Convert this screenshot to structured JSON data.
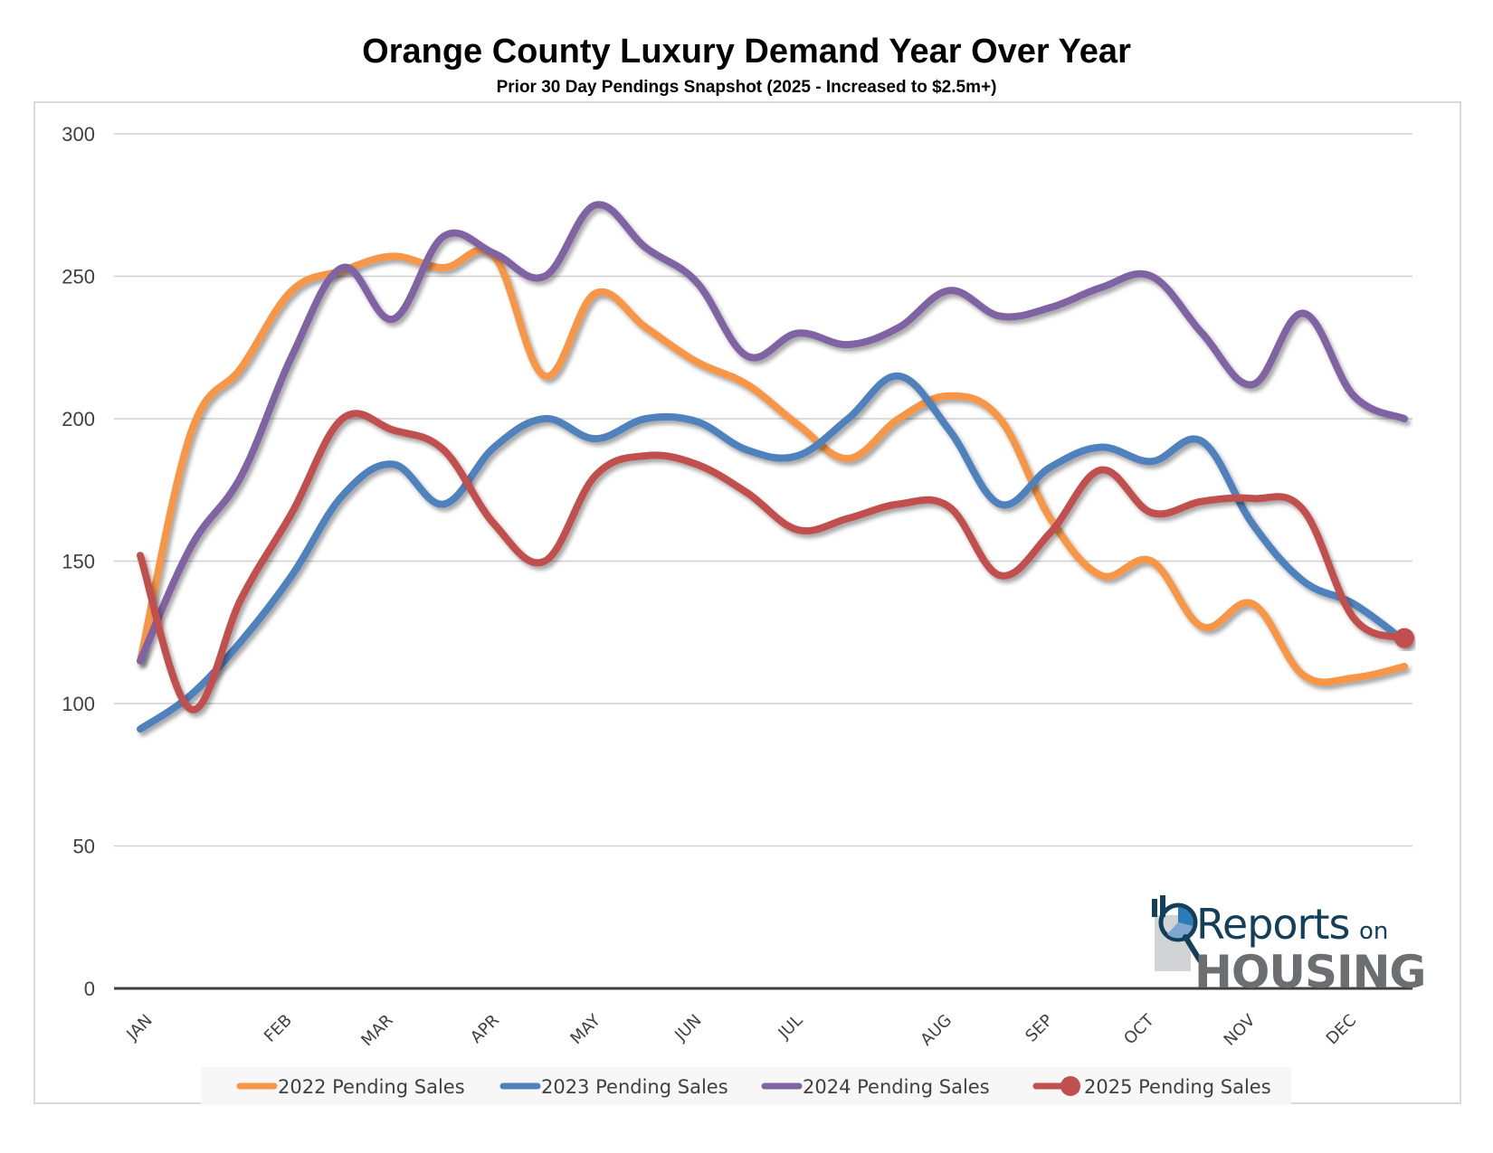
{
  "chart_data": {
    "type": "line",
    "title": "Orange County Luxury Demand Year Over Year",
    "subtitle": "Prior 30 Day Pendings Snapshot (2025 - Increased to $2.5m+)",
    "xlabel": "",
    "ylabel": "",
    "ylim": [
      0,
      300
    ],
    "yticks": [
      0,
      50,
      100,
      150,
      200,
      250,
      300
    ],
    "grid": true,
    "smooth": true,
    "legend_position": "bottom",
    "x_sample_range": [
      0,
      25
    ],
    "month_labels": [
      {
        "label": "JAN",
        "at": 0
      },
      {
        "label": "FEB",
        "at": 2.76
      },
      {
        "label": "MAR",
        "at": 4.76
      },
      {
        "label": "APR",
        "at": 6.86
      },
      {
        "label": "MAY",
        "at": 8.86
      },
      {
        "label": "JUN",
        "at": 10.86
      },
      {
        "label": "JUL",
        "at": 12.86
      },
      {
        "label": "AUG",
        "at": 15.81
      },
      {
        "label": "SEP",
        "at": 17.81
      },
      {
        "label": "OCT",
        "at": 19.81
      },
      {
        "label": "NOV",
        "at": 21.81
      },
      {
        "label": "DEC",
        "at": 23.81
      }
    ],
    "series": [
      {
        "name": "2022 Pending Sales",
        "color": "#f79646",
        "marker_last": false,
        "values": [
          115,
          195,
          218,
          245,
          252,
          257,
          253,
          257,
          215,
          244,
          232,
          220,
          212,
          198,
          186,
          200,
          208,
          200,
          165,
          145,
          150,
          127,
          135,
          110,
          109,
          113
        ]
      },
      {
        "name": "2023 Pending Sales",
        "color": "#4f81bd",
        "marker_last": false,
        "values": [
          91,
          103,
          122,
          145,
          173,
          184,
          170,
          190,
          200,
          193,
          200,
          199,
          189,
          187,
          200,
          215,
          196,
          170,
          183,
          190,
          185,
          192,
          163,
          143,
          135,
          122
        ]
      },
      {
        "name": "2024 Pending Sales",
        "color": "#8064a2",
        "marker_last": false,
        "values": [
          115,
          155,
          180,
          222,
          253,
          235,
          264,
          258,
          250,
          275,
          260,
          248,
          222,
          230,
          226,
          232,
          245,
          236,
          239,
          246,
          250,
          230,
          212,
          237,
          208,
          200
        ]
      },
      {
        "name": "2025 Pending Sales",
        "color": "#c0504d",
        "marker_last": true,
        "values": [
          152,
          98,
          137,
          167,
          200,
          196,
          189,
          163,
          150,
          180,
          187,
          184,
          174,
          161,
          165,
          170,
          169,
          145,
          160,
          182,
          167,
          171,
          172,
          168,
          130,
          123
        ]
      }
    ]
  },
  "logo": {
    "line1": "Reports",
    "line1_suffix": "on",
    "line2": "HOUSING",
    "colors": {
      "navy": "#123f5a",
      "blue": "#2b7bb9",
      "gray": "#6d6e71",
      "light_gray": "#d1d3d4"
    }
  }
}
